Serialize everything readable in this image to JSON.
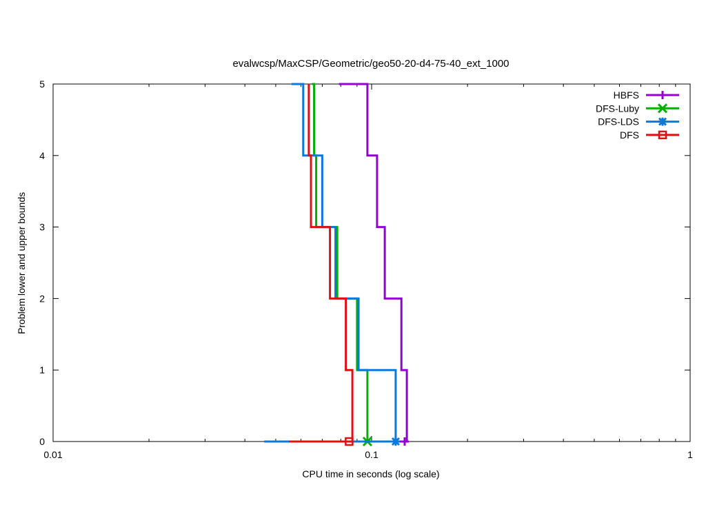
{
  "chart_data": {
    "type": "line",
    "title": "evalwcsp/MaxCSP/Geometric/geo50-20-d4-75-40_ext_1000",
    "xlabel": "CPU time in seconds (log scale)",
    "ylabel": "Problem lower and upper bounds",
    "xscale": "log",
    "xlim": [
      0.01,
      1
    ],
    "ylim": [
      0,
      5
    ],
    "xticks": [
      0.01,
      0.1,
      1
    ],
    "xtick_labels": [
      "0.01",
      "0.1",
      "1"
    ],
    "yticks": [
      0,
      1,
      2,
      3,
      4,
      5
    ],
    "ytick_labels": [
      "0",
      "1",
      "2",
      "3",
      "4",
      "5"
    ],
    "grid": false,
    "legend_position": "top-right",
    "series": [
      {
        "name": "HBFS",
        "color": "#9400d3",
        "marker": "plus",
        "upper": {
          "x": [
            0.079,
            0.097,
            0.097,
            0.104,
            0.104,
            0.11,
            0.11,
            0.124,
            0.124,
            0.129,
            0.129
          ],
          "y": [
            5,
            5,
            4,
            4,
            3,
            3,
            2,
            2,
            1,
            1,
            0
          ]
        },
        "lower": {
          "x": [
            0.079,
            0.129
          ],
          "y": [
            0,
            0
          ]
        },
        "marker_points": [
          {
            "x": 0.127,
            "y": 0
          }
        ]
      },
      {
        "name": "DFS-Luby",
        "color": "#00b000",
        "marker": "x",
        "upper": {
          "x": [
            0.065,
            0.066,
            0.066,
            0.067,
            0.067,
            0.078,
            0.078,
            0.09,
            0.09,
            0.097,
            0.097
          ],
          "y": [
            5,
            5,
            4,
            4,
            3,
            3,
            2,
            2,
            1,
            1,
            0
          ]
        },
        "lower": {
          "x": [
            0.066,
            0.097
          ],
          "y": [
            0,
            0
          ]
        },
        "marker_points": [
          {
            "x": 0.097,
            "y": 0
          }
        ]
      },
      {
        "name": "DFS-LDS",
        "color": "#0a78dc",
        "marker": "star",
        "upper": {
          "x": [
            0.056,
            0.061,
            0.061,
            0.07,
            0.07,
            0.077,
            0.077,
            0.091,
            0.091,
            0.119,
            0.119
          ],
          "y": [
            5,
            5,
            4,
            4,
            3,
            3,
            2,
            2,
            1,
            1,
            0
          ]
        },
        "lower": {
          "x": [
            0.046,
            0.119
          ],
          "y": [
            0,
            0
          ]
        },
        "marker_points": [
          {
            "x": 0.119,
            "y": 0
          }
        ]
      },
      {
        "name": "DFS",
        "color": "#e01010",
        "marker": "square",
        "upper": {
          "x": [
            0.0635,
            0.0635,
            0.0645,
            0.0645,
            0.074,
            0.074,
            0.083,
            0.083,
            0.087,
            0.087
          ],
          "y": [
            5,
            4,
            4,
            3,
            3,
            2,
            2,
            1,
            1,
            0
          ]
        },
        "lower": {
          "x": [
            0.055,
            0.087
          ],
          "y": [
            0,
            0
          ]
        },
        "marker_points": [
          {
            "x": 0.085,
            "y": 0
          }
        ]
      }
    ]
  }
}
